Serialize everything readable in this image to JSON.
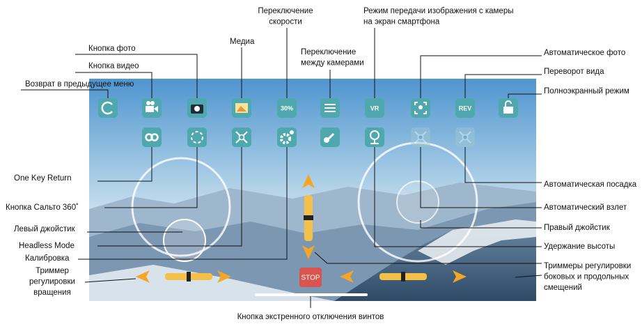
{
  "labels": {
    "speed": [
      "Переключение",
      "скорости"
    ],
    "camera_stream": [
      "Режим передачи изображения с камеры",
      "на экран смартфона"
    ],
    "photo": "Кнопка фото",
    "media": "Медиа",
    "switch_cameras": [
      "Переключение",
      "между камерами"
    ],
    "video": "Кнопка видео",
    "back": "Возврат в предыдущее меню",
    "auto_photo": "Автоматическое фото",
    "flip_view": "Переворот вида",
    "fullscreen": "Полноэкранный режим",
    "auto_landing": "Автоматическая посадка",
    "auto_takeoff": "Автоматический взлет",
    "right_joystick": "Правый джойстик",
    "altitude_hold": "Удержание высоты",
    "trimmers": [
      "Триммеры регулировки",
      "боковых и продольных",
      "смещений"
    ],
    "one_key_return": "One Key Return",
    "flip_360": "Кнопка Сальто 360˚",
    "left_joystick": "Левый джойстик",
    "headless": "Headless Mode",
    "calibration": "Калибровка",
    "rotation_trim": [
      "Триммер",
      "регулировки",
      "вращения"
    ],
    "emergency_stop": "Кнопка экстренного отключения винтов"
  },
  "icons": {
    "speed": "30%",
    "vr": "VR",
    "rev": "REV",
    "stop": "STOP"
  }
}
